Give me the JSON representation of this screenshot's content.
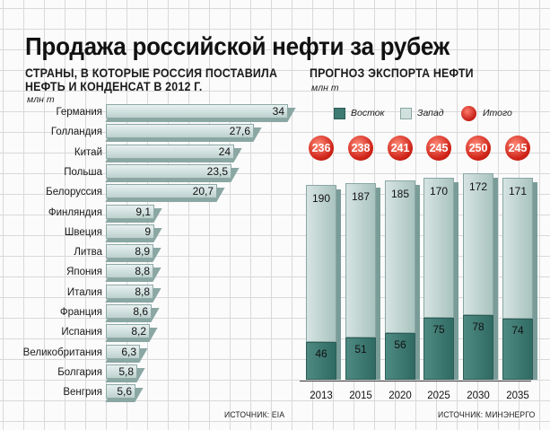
{
  "title": "Продажа российской нефти за рубеж",
  "left_chart": {
    "subtitle_line1": "СТРАНЫ, В КОТОРЫЕ РОССИЯ ПОСТАВИЛА",
    "subtitle_line2": "НЕФТЬ И КОНДЕНСАТ В 2012 Г.",
    "unit": "млн т",
    "source": "ИСТОЧНИК: EIA"
  },
  "right_chart": {
    "subtitle": "ПРОГНОЗ ЭКСПОРТА НЕФТИ",
    "unit": "млн т",
    "legend": {
      "east": "Восток",
      "west": "Запад",
      "total": "Итого"
    },
    "source": "ИСТОЧНИК: МИНЭНЕРГО"
  },
  "colors": {
    "bar_light": "#d1e1de",
    "bar_dark": "#3d7a72",
    "total_red": "#cf2318"
  },
  "chart_data": [
    {
      "type": "bar",
      "orientation": "horizontal",
      "title": "СТРАНЫ, В КОТОРЫЕ РОССИЯ ПОСТАВИЛА НЕФТЬ И КОНДЕНСАТ В 2012 Г.",
      "ylabel": "млн т",
      "categories": [
        "Германия",
        "Голландия",
        "Китай",
        "Польша",
        "Белоруссия",
        "Финляндия",
        "Швеция",
        "Литва",
        "Япония",
        "Италия",
        "Франция",
        "Испания",
        "Великобритания",
        "Болгария",
        "Венгрия"
      ],
      "values": [
        34,
        27.6,
        24,
        23.5,
        20.7,
        9.1,
        9,
        8.9,
        8.8,
        8.8,
        8.6,
        8.2,
        6.3,
        5.8,
        5.6
      ],
      "value_labels": [
        "34",
        "27,6",
        "24",
        "23,5",
        "20,7",
        "9,1",
        "9",
        "8,9",
        "8,8",
        "8,8",
        "8,6",
        "8,2",
        "6,3",
        "5,8",
        "5,6"
      ],
      "xlim": [
        0,
        34
      ]
    },
    {
      "type": "bar",
      "stacked": true,
      "title": "ПРОГНОЗ ЭКСПОРТА НЕФТИ",
      "ylabel": "млн т",
      "categories": [
        "2013",
        "2015",
        "2020",
        "2025",
        "2030",
        "2035"
      ],
      "series": [
        {
          "name": "Восток",
          "values": [
            46,
            51,
            56,
            75,
            78,
            74
          ]
        },
        {
          "name": "Запад",
          "values": [
            190,
            187,
            185,
            170,
            172,
            171
          ]
        }
      ],
      "totals": [
        236,
        238,
        241,
        245,
        250,
        245
      ],
      "total_label": "Итого",
      "ylim": [
        0,
        250
      ]
    }
  ]
}
